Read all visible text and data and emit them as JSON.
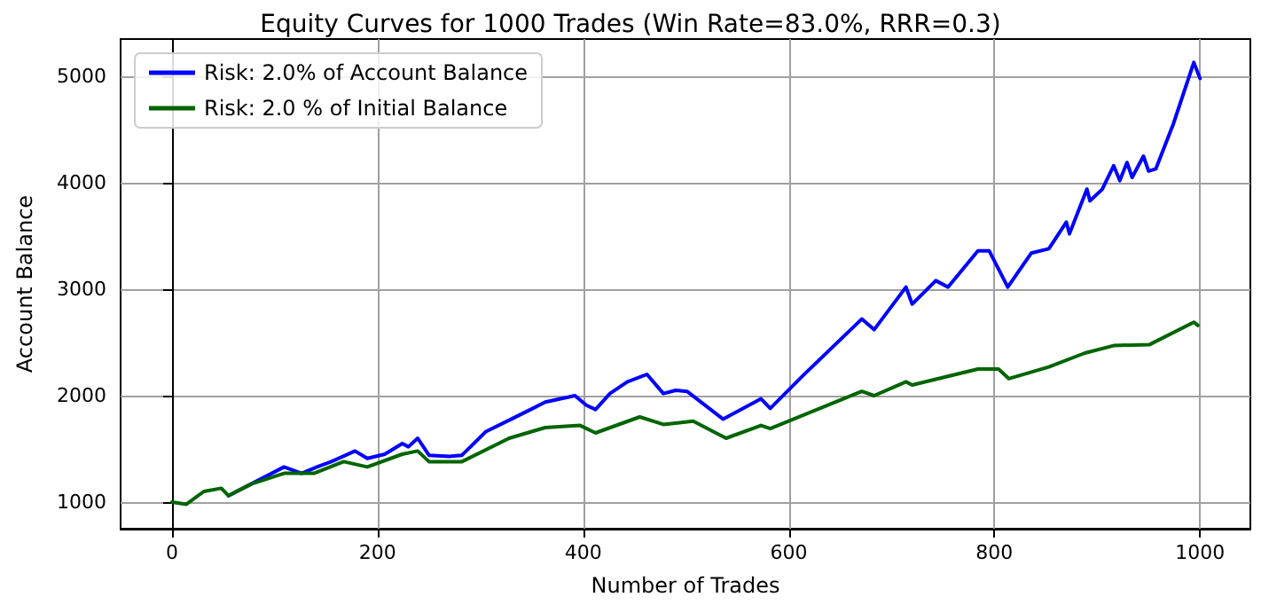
{
  "chart_data": {
    "type": "line",
    "title": "Equity Curves for 1000 Trades (Win Rate=83.0%, RRR=0.3)",
    "xlabel": "Number of Trades",
    "ylabel": "Account Balance",
    "xlim": [
      -50,
      1049
    ],
    "xticks": [
      0,
      200,
      400,
      600,
      800,
      1000
    ],
    "ylim": [
      750,
      5350
    ],
    "yticks": [
      1000,
      2000,
      3000,
      4000,
      5000
    ],
    "grid": true,
    "legend": "top left",
    "marker": "none",
    "line_style": "solid",
    "series": [
      {
        "name": "Risk: 2.0% of Account Balance",
        "color": "#0000ff",
        "x": [
          55,
          77,
          109,
          126,
          141,
          155,
          178,
          190,
          207,
          224,
          230,
          239,
          250,
          270,
          282,
          305,
          328,
          351,
          363,
          392,
          403,
          412,
          426,
          443,
          462,
          478,
          490,
          501,
          536,
          573,
          582,
          614,
          671,
          683,
          714,
          720,
          743,
          755,
          784,
          795,
          813,
          836,
          853,
          870,
          873,
          890,
          893,
          905,
          916,
          922,
          929,
          934,
          945,
          950,
          957,
          974,
          994,
          1000
        ],
        "values": [
          1060,
          1170,
          1330,
          1270,
          1330,
          1380,
          1480,
          1410,
          1450,
          1550,
          1520,
          1600,
          1440,
          1430,
          1440,
          1660,
          1770,
          1880,
          1940,
          2000,
          1910,
          1870,
          2020,
          2130,
          2200,
          2020,
          2050,
          2040,
          1780,
          1970,
          1880,
          2190,
          2720,
          2620,
          3020,
          2860,
          3080,
          3020,
          3360,
          3360,
          3020,
          3340,
          3380,
          3630,
          3520,
          3940,
          3830,
          3940,
          4160,
          4020,
          4190,
          4050,
          4250,
          4110,
          4130,
          4550,
          5130,
          4980
        ]
      },
      {
        "name": "Risk: 2.0 % of Initial Balance",
        "color": "#006400",
        "x": [
          0,
          14,
          31,
          48,
          55,
          77,
          109,
          138,
          167,
          190,
          224,
          239,
          250,
          282,
          328,
          363,
          397,
          412,
          455,
          478,
          507,
          539,
          573,
          582,
          671,
          683,
          714,
          720,
          784,
          804,
          814,
          853,
          888,
          916,
          951,
          994,
          998
        ],
        "values": [
          1000,
          980,
          1100,
          1130,
          1060,
          1170,
          1270,
          1270,
          1380,
          1330,
          1450,
          1480,
          1380,
          1380,
          1600,
          1700,
          1720,
          1650,
          1800,
          1730,
          1760,
          1600,
          1720,
          1690,
          2040,
          2000,
          2130,
          2100,
          2250,
          2250,
          2160,
          2270,
          2400,
          2470,
          2480,
          2690,
          2660
        ]
      }
    ]
  }
}
